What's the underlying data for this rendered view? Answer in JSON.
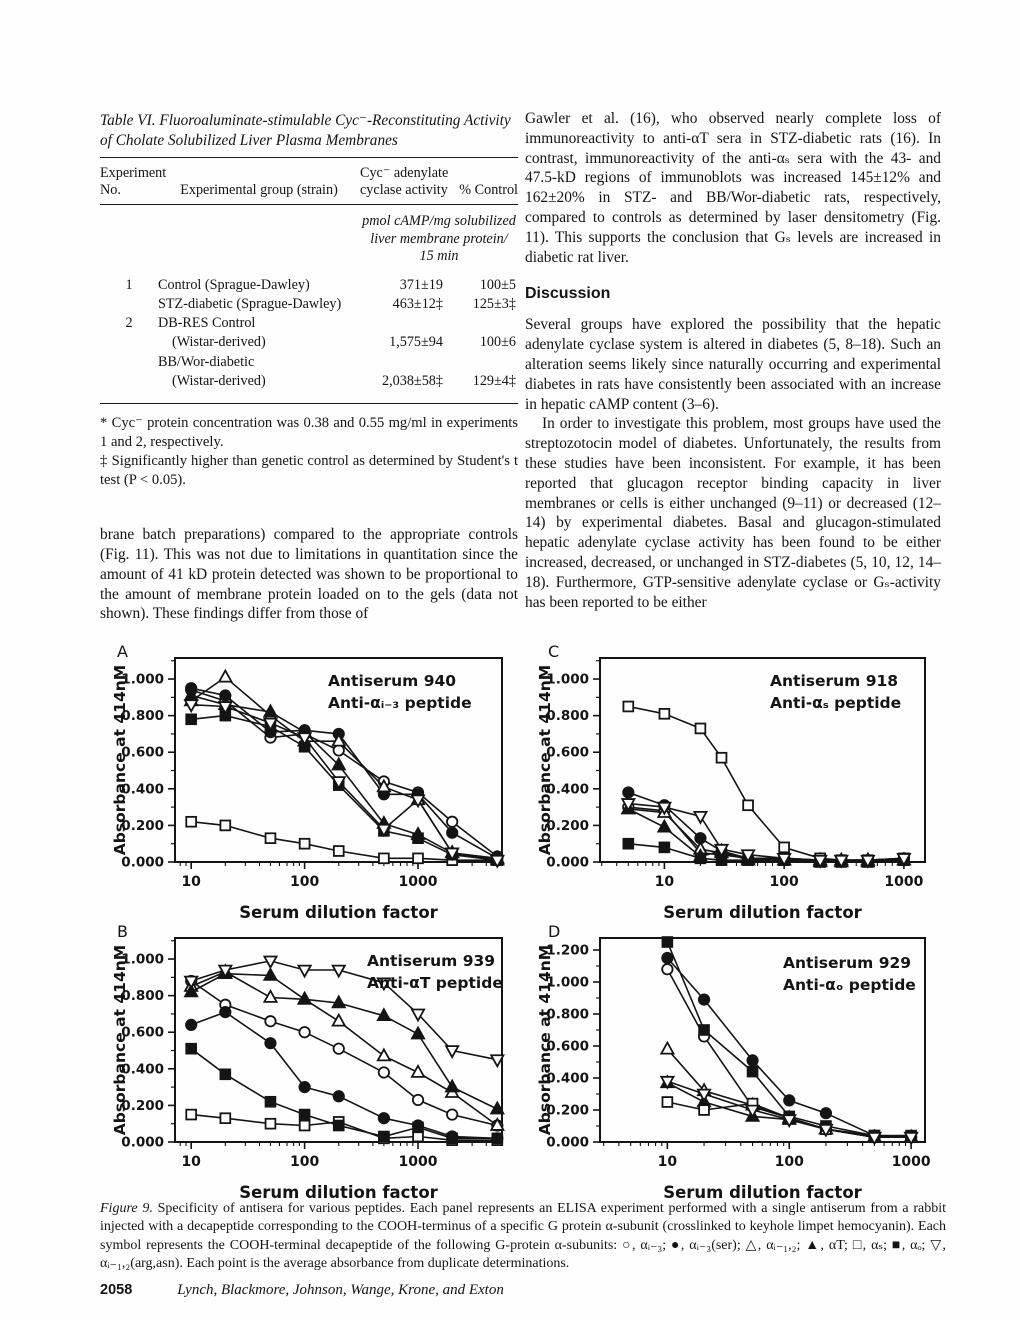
{
  "table_vi": {
    "title": "Table VI. Fluoroaluminate-stimulable Cyc⁻-Reconstituting Activity of Cholate Solubilized Liver Plasma Membranes",
    "headers": {
      "experiment": "Experiment\nNo.",
      "group": "Experimental group (strain)",
      "activity": "Cyc⁻ adenylate\ncyclase activity",
      "control": "% Control"
    },
    "units_note": "pmol cAMP/mg solubilized\nliver membrane protein/\n15 min",
    "rows": [
      {
        "no": "1",
        "group": "Control (Sprague-Dawley)",
        "activity": "371±19",
        "control": "100±5",
        "indent": false
      },
      {
        "no": "",
        "group": "STZ-diabetic (Sprague-Dawley)",
        "activity": "463±12‡",
        "control": "125±3‡",
        "indent": false
      },
      {
        "no": "2",
        "group": "DB-RES Control",
        "activity": "",
        "control": "",
        "indent": false
      },
      {
        "no": "",
        "group": "(Wistar-derived)",
        "activity": "1,575±94",
        "control": "100±6",
        "indent": true
      },
      {
        "no": "",
        "group": "BB/Wor-diabetic",
        "activity": "",
        "control": "",
        "indent": false
      },
      {
        "no": "",
        "group": "(Wistar-derived)",
        "activity": "2,038±58‡",
        "control": "129±4‡",
        "indent": true
      }
    ],
    "footnotes": [
      "* Cyc⁻ protein concentration was 0.38 and 0.55 mg/ml in experiments 1 and 2, respectively.",
      "‡ Significantly higher than genetic control as determined by Student's t test (P < 0.05)."
    ]
  },
  "left_column": {
    "continuation_paragraph": "brane batch preparations) compared to the appropriate controls (Fig. 11). This was not due to limitations in quantitation since the amount of 41 kD protein detected was shown to be proportional to the amount of membrane protein loaded on to the gels (data not shown). These findings differ from those of"
  },
  "right_column": {
    "paragraph1": "Gawler et al. (16), who observed nearly complete loss of immunoreactivity to anti-αT sera in STZ-diabetic rats (16). In contrast, immunoreactivity of the anti-αₛ sera with the 43- and 47.5-kD regions of immunoblots was increased 145±12% and 162±20% in STZ- and BB/Wor-diabetic rats, respectively, compared to controls as determined by laser densitometry (Fig. 11). This supports the conclusion that Gₛ levels are increased in diabetic rat liver.",
    "discussion_heading": "Discussion",
    "paragraph2": "Several groups have explored the possibility that the hepatic adenylate cyclase system is altered in diabetes (5, 8–18). Such an alteration seems likely since naturally occurring and experimental diabetes in rats have consistently been associated with an increase in hepatic cAMP content (3–6).",
    "paragraph3": "In order to investigate this problem, most groups have used the streptozotocin model of diabetes. Unfortunately, the results from these studies have been inconsistent. For example, it has been reported that glucagon receptor binding capacity in liver membranes or cells is either unchanged (9–11) or decreased (12–14) by experimental diabetes. Basal and glucagon-stimulated hepatic adenylate cyclase activity has been found to be either increased, decreased, or unchanged in STZ-diabetes (5, 10, 12, 14–18). Furthermore, GTP-sensitive adenylate cyclase or Gₛ-activity has been reported to be either"
  },
  "chart_data": [
    {
      "type": "line",
      "panel": "A",
      "legend_line1": "Antiserum 940",
      "legend_line2": "Anti-αᵢ₋₃ peptide",
      "xlabel": "Serum dilution factor",
      "ylabel": "Absorbance at 414nM",
      "x_scale": "log",
      "xlim": [
        7.2,
        5500
      ],
      "ylim": [
        0,
        1.115
      ],
      "xticks": [
        10,
        100,
        1000
      ],
      "yticks": [
        0,
        0.2,
        0.4,
        0.6,
        0.8,
        1.0
      ],
      "x": [
        10,
        20,
        50,
        100,
        200,
        500,
        1000,
        2000,
        5000
      ],
      "series": [
        {
          "name": "αi-3",
          "marker": "circle",
          "filled": false,
          "values": [
            0.94,
            0.88,
            0.68,
            0.7,
            0.61,
            0.44,
            0.38,
            0.22,
            0.03
          ]
        },
        {
          "name": "αi-3(ser)",
          "marker": "circle",
          "filled": true,
          "values": [
            0.95,
            0.91,
            0.71,
            0.72,
            0.7,
            0.37,
            0.37,
            0.16,
            0.02
          ]
        },
        {
          "name": "αi-1,2",
          "marker": "triangle",
          "filled": false,
          "values": [
            0.88,
            1.01,
            0.8,
            0.66,
            0.66,
            0.41,
            0.34,
            0.05,
            0.02
          ]
        },
        {
          "name": "αT",
          "marker": "triangle",
          "filled": true,
          "values": [
            0.91,
            0.86,
            0.82,
            0.71,
            0.53,
            0.21,
            0.15,
            0.05,
            0.01
          ]
        },
        {
          "name": "αs",
          "marker": "square",
          "filled": false,
          "values": [
            0.22,
            0.2,
            0.13,
            0.1,
            0.06,
            0.02,
            0.02,
            0.01,
            0.01
          ]
        },
        {
          "name": "αo",
          "marker": "square",
          "filled": true,
          "values": [
            0.78,
            0.8,
            0.74,
            0.63,
            0.42,
            0.17,
            0.13,
            0.04,
            0.01
          ]
        },
        {
          "name": "αi-1,2(arg,asn)",
          "marker": "triangle-down",
          "filled": false,
          "values": [
            0.86,
            0.85,
            0.76,
            0.68,
            0.44,
            0.18,
            0.34,
            0.05,
            0.01
          ]
        }
      ]
    },
    {
      "type": "line",
      "panel": "C",
      "legend_line1": "Antiserum 918",
      "legend_line2": "Anti-αₛ peptide",
      "xlabel": "Serum dilution factor",
      "ylabel": "Absorbance at 414nM",
      "x_scale": "log",
      "xlim": [
        2.9,
        1500
      ],
      "ylim": [
        0,
        1.115
      ],
      "xticks": [
        10,
        100,
        1000
      ],
      "yticks": [
        0,
        0.2,
        0.4,
        0.6,
        0.8,
        1.0
      ],
      "x": [
        5,
        10,
        20,
        30,
        50,
        100,
        200,
        300,
        500,
        1000
      ],
      "series": [
        {
          "name": "αi-3",
          "marker": "circle",
          "filled": false,
          "values": [
            0.3,
            0.28,
            0.05,
            0.04,
            0.02,
            0.02,
            0.01,
            0.01,
            0.01,
            0.02
          ]
        },
        {
          "name": "αi-3(ser)",
          "marker": "circle",
          "filled": true,
          "values": [
            0.38,
            0.31,
            0.13,
            0.06,
            0.02,
            0.02,
            0.01,
            0.01,
            0.01,
            0.01
          ]
        },
        {
          "name": "αi-1,2",
          "marker": "triangle",
          "filled": false,
          "values": [
            0.29,
            0.27,
            0.07,
            0.05,
            0.02,
            0.01,
            0.01,
            0.01,
            0.01,
            0.01
          ]
        },
        {
          "name": "αT",
          "marker": "triangle",
          "filled": true,
          "values": [
            0.29,
            0.19,
            0.03,
            0.06,
            0.01,
            0.01,
            0.0,
            0.0,
            0.0,
            0.01
          ]
        },
        {
          "name": "αs",
          "marker": "square",
          "filled": false,
          "values": [
            0.85,
            0.81,
            0.73,
            0.57,
            0.31,
            0.08,
            0.02,
            0.01,
            0.01,
            0.02
          ]
        },
        {
          "name": "αo",
          "marker": "square",
          "filled": true,
          "values": [
            0.1,
            0.08,
            0.02,
            0.01,
            0.01,
            0.01,
            0.0,
            0.0,
            0.0,
            0.01
          ]
        },
        {
          "name": "αi-1,2(arg,asn)",
          "marker": "triangle-down",
          "filled": false,
          "values": [
            0.32,
            0.3,
            0.25,
            0.07,
            0.04,
            0.02,
            0.01,
            0.01,
            0.01,
            0.02
          ]
        }
      ]
    },
    {
      "type": "line",
      "panel": "B",
      "legend_line1": "Antiserum 939",
      "legend_line2": "Anti-αT peptide",
      "xlabel": "Serum dilution factor",
      "ylabel": "Absorbance at 414nM",
      "x_scale": "log",
      "xlim": [
        7.2,
        5500
      ],
      "ylim": [
        0,
        1.115
      ],
      "xticks": [
        10,
        100,
        1000
      ],
      "yticks": [
        0,
        0.2,
        0.4,
        0.6,
        0.8,
        1.0
      ],
      "x": [
        10,
        20,
        50,
        100,
        200,
        500,
        1000,
        2000,
        5000
      ],
      "series": [
        {
          "name": "αi-3",
          "marker": "circle",
          "filled": false,
          "values": [
            0.88,
            0.75,
            0.66,
            0.6,
            0.51,
            0.38,
            0.23,
            0.15,
            0.09
          ]
        },
        {
          "name": "αi-3(ser)",
          "marker": "circle",
          "filled": true,
          "values": [
            0.64,
            0.71,
            0.54,
            0.3,
            0.25,
            0.13,
            0.09,
            0.03,
            0.02
          ]
        },
        {
          "name": "αi-1,2",
          "marker": "triangle",
          "filled": false,
          "values": [
            0.85,
            0.93,
            0.79,
            0.78,
            0.66,
            0.47,
            0.38,
            0.27,
            0.09
          ]
        },
        {
          "name": "αT",
          "marker": "triangle",
          "filled": true,
          "values": [
            0.82,
            0.92,
            0.91,
            0.78,
            0.76,
            0.69,
            0.59,
            0.3,
            0.18
          ]
        },
        {
          "name": "αs",
          "marker": "square",
          "filled": false,
          "values": [
            0.15,
            0.13,
            0.1,
            0.09,
            0.11,
            0.02,
            0.03,
            0.01,
            0.01
          ]
        },
        {
          "name": "αo",
          "marker": "square",
          "filled": true,
          "values": [
            0.51,
            0.37,
            0.22,
            0.15,
            0.09,
            0.03,
            0.08,
            0.02,
            0.02
          ]
        },
        {
          "name": "αi-1,2(arg,asn)",
          "marker": "triangle-down",
          "filled": false,
          "values": [
            0.88,
            0.94,
            0.99,
            0.94,
            0.94,
            0.87,
            0.7,
            0.5,
            0.45
          ]
        }
      ]
    },
    {
      "type": "line",
      "panel": "D",
      "legend_line1": "Antiserum 929",
      "legend_line2": "Anti-αₒ peptide",
      "xlabel": "Serum dilution factor",
      "ylabel": "Absorbance at 414nM",
      "x_scale": "log",
      "xlim": [
        2.8,
        1300
      ],
      "ylim": [
        0,
        1.275
      ],
      "xticks": [
        10,
        100,
        1000
      ],
      "yticks": [
        0,
        0.2,
        0.4,
        0.6,
        0.8,
        1.0,
        1.2
      ],
      "x": [
        10,
        20,
        50,
        100,
        200,
        500,
        1000
      ],
      "series": [
        {
          "name": "αi-3",
          "marker": "circle",
          "filled": false,
          "values": [
            1.08,
            0.66,
            0.22,
            0.15,
            0.08,
            0.03,
            0.03
          ]
        },
        {
          "name": "αi-3(ser)",
          "marker": "circle",
          "filled": true,
          "values": [
            1.15,
            0.89,
            0.51,
            0.26,
            0.18,
            0.04,
            0.03
          ]
        },
        {
          "name": "αi-1,2",
          "marker": "triangle",
          "filled": false,
          "values": [
            0.58,
            0.32,
            0.23,
            0.15,
            0.08,
            0.03,
            0.03
          ]
        },
        {
          "name": "αT",
          "marker": "triangle",
          "filled": true,
          "values": [
            0.37,
            0.25,
            0.16,
            0.14,
            0.08,
            0.03,
            0.03
          ]
        },
        {
          "name": "αs",
          "marker": "square",
          "filled": false,
          "values": [
            0.25,
            0.2,
            0.24,
            0.15,
            0.08,
            0.04,
            0.03
          ]
        },
        {
          "name": "αo",
          "marker": "square",
          "filled": true,
          "values": [
            1.25,
            0.7,
            0.44,
            0.16,
            0.1,
            0.04,
            0.04
          ]
        },
        {
          "name": "αi-1,2(arg,asn)",
          "marker": "triangle-down",
          "filled": false,
          "values": [
            0.38,
            0.3,
            0.2,
            0.14,
            0.08,
            0.03,
            0.03
          ]
        }
      ]
    }
  ],
  "caption": {
    "label": "Figure 9.",
    "text": "Specificity of antisera for various peptides. Each panel represents an ELISA experiment performed with a single antiserum from a rabbit injected with a decapeptide corresponding to the COOH-terminus of a specific G protein α-subunit (crosslinked to keyhole limpet hemocyanin). Each symbol represents the COOH-terminal decapeptide of the following G-protein α-subunits: ○, αᵢ₋₃; ●, αᵢ₋₃(ser); △, αᵢ₋₁,₂; ▲, αT; □, αₛ; ■, αₒ; ▽, αᵢ₋₁,₂(arg,asn). Each point is the average absorbance from duplicate determinations."
  },
  "footer": {
    "page_number": "2058",
    "authors": "Lynch, Blackmore, Johnson, Wange, Krone, and Exton"
  }
}
